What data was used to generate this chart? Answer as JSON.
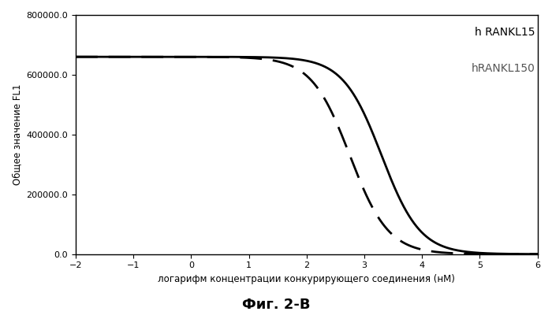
{
  "xlabel": "логарифм концентрации конкурирующего соединения (нМ)",
  "ylabel": "Общее значение FL1",
  "caption": "Фиг. 2-В",
  "xlim": [
    -2,
    6
  ],
  "ylim": [
    0,
    800000
  ],
  "xticks": [
    -2,
    -1,
    0,
    1,
    2,
    3,
    4,
    5,
    6
  ],
  "yticks": [
    0,
    200000,
    400000,
    600000,
    800000
  ],
  "solid_label": "h RANKL15",
  "dashed_label": "hRANKL150",
  "solid_midpoint": 3.3,
  "dashed_midpoint": 2.75,
  "top_value": 660000,
  "bottom_value": 0,
  "hill_solid": 1.3,
  "hill_dashed": 1.3,
  "bg_color": "#ffffff",
  "line_color": "#000000"
}
